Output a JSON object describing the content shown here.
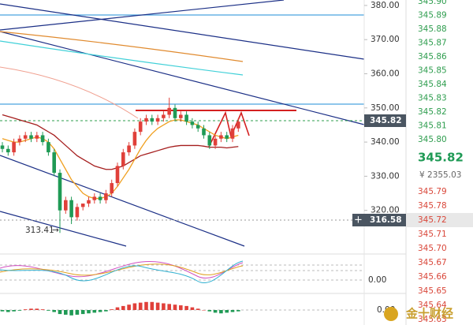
{
  "chart_data": {
    "type": "candlestick",
    "ylim": [
      310,
      381.6
    ],
    "yticks": [
      {
        "value": 320,
        "label": "320.00"
      },
      {
        "value": 330,
        "label": "330.00"
      },
      {
        "value": 340,
        "label": "340.00"
      },
      {
        "value": 350,
        "label": "350.00"
      },
      {
        "value": 360,
        "label": "360.00"
      },
      {
        "value": 370,
        "label": "370.00"
      },
      {
        "value": 380,
        "label": "380.00"
      }
    ],
    "up_color": "#e0403a",
    "down_color": "#1f9a55",
    "open": [
      339,
      338,
      337,
      340,
      341,
      342,
      341,
      342,
      340,
      337,
      331,
      320,
      323,
      318,
      321,
      322,
      323,
      324,
      323,
      325,
      328,
      333,
      337,
      339,
      343,
      346,
      347,
      346,
      347,
      348,
      350,
      347,
      348,
      346,
      345,
      344,
      342,
      339,
      341,
      342,
      341,
      344
    ],
    "high": [
      340,
      339,
      341,
      342,
      343,
      343,
      343,
      343,
      341,
      338,
      332,
      324,
      324,
      322,
      322,
      324,
      325,
      325,
      326,
      329,
      334,
      338,
      340,
      344,
      347,
      348,
      348,
      348,
      349,
      353,
      351,
      349,
      349,
      347,
      346,
      345,
      343,
      342,
      343,
      343,
      345,
      347
    ],
    "low": [
      337,
      336,
      336,
      339,
      340,
      340,
      340,
      339,
      336,
      330,
      313.41,
      319,
      316,
      317,
      320,
      321,
      322,
      322,
      322,
      324,
      327,
      332,
      336,
      338,
      342,
      345,
      345,
      345,
      346,
      347,
      346,
      346,
      345,
      344,
      343,
      341,
      338,
      338,
      340,
      340,
      340,
      343
    ],
    "close": [
      338,
      337,
      340,
      341,
      342,
      341,
      342,
      340,
      337,
      331,
      320,
      323,
      318,
      321,
      322,
      323,
      324,
      323,
      325,
      328,
      333,
      337,
      339,
      343,
      346,
      347,
      346,
      347,
      348,
      350,
      347,
      348,
      346,
      345,
      344,
      342,
      339,
      341,
      342,
      341,
      344,
      346
    ],
    "series": [
      {
        "color": "#a51d1d",
        "values": [
          348,
          347.5,
          347,
          346.5,
          346,
          345.5,
          345,
          344,
          343,
          342,
          340.5,
          339,
          337.5,
          336,
          335,
          334,
          333,
          332.5,
          332,
          332,
          332.5,
          333,
          334,
          335,
          336,
          336.5,
          337,
          337.5,
          338,
          338.5,
          338.8,
          339,
          339,
          339,
          339,
          338.8,
          338.5,
          338.5,
          338.5,
          338.3,
          338.5,
          338.7
        ]
      },
      {
        "color": "#f0a020",
        "values": [
          341,
          340.5,
          340,
          340,
          340.5,
          341,
          341.5,
          341,
          340,
          338,
          335,
          332,
          329,
          327,
          325,
          324,
          323.5,
          323.5,
          324,
          325,
          327,
          329.5,
          332,
          335,
          338,
          340.5,
          342.5,
          344,
          345,
          346,
          346.5,
          346.5,
          346,
          345.5,
          345,
          344,
          343,
          342,
          341.5,
          341,
          341.5,
          342
        ]
      }
    ],
    "last_price": 345.82,
    "marker_price": 316.58,
    "low_label": 313.41,
    "macd_ylim": [
      -1,
      1
    ],
    "macd_tick": {
      "value": 0,
      "label": "0.00"
    },
    "kdj_tick": {
      "value": 0,
      "label": "0.00"
    },
    "macd_histogram": [
      -0.1,
      -0.15,
      -0.1,
      -0.05,
      0.05,
      0.1,
      0.1,
      0.05,
      -0.05,
      -0.15,
      -0.3,
      -0.35,
      -0.4,
      -0.35,
      -0.3,
      -0.25,
      -0.2,
      -0.15,
      -0.1,
      0.05,
      0.2,
      0.3,
      0.4,
      0.5,
      0.55,
      0.6,
      0.6,
      0.55,
      0.5,
      0.45,
      0.4,
      0.35,
      0.3,
      0.2,
      0.1,
      0,
      -0.1,
      -0.2,
      -0.25,
      -0.2,
      -0.15,
      -0.1
    ],
    "ladder_upper": [
      "345.90",
      "345.89",
      "345.88",
      "345.87",
      "345.86",
      "345.85",
      "345.84",
      "345.83",
      "345.82",
      "345.81",
      "345.80"
    ],
    "ladder_price": "345.82",
    "ladder_sub": "¥ 2355.03",
    "ladder_lower": [
      "345.79",
      "345.78",
      "345.72",
      "345.71",
      "345.70",
      "345.67",
      "345.66",
      "345.65",
      "345.64",
      "345.63"
    ],
    "ladder_highlight": 2,
    "watermark": "金十财经"
  }
}
